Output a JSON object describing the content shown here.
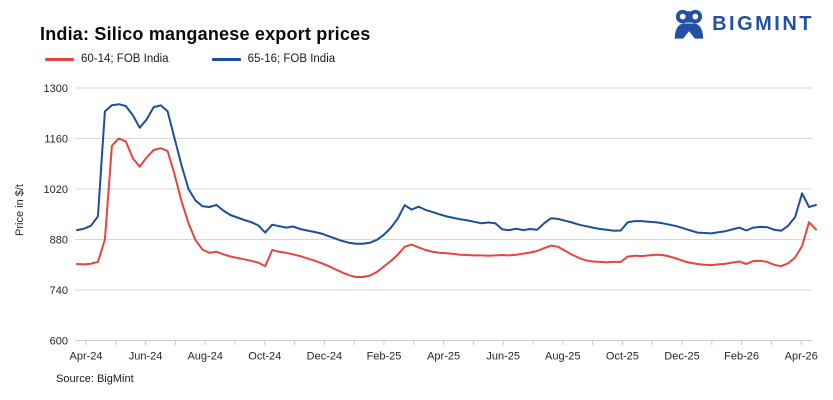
{
  "header": {
    "title": "India: Silico manganese export prices",
    "brand": "BIGMINT"
  },
  "legend": [
    {
      "label": "60-14; FOB India",
      "color": "#e8453f"
    },
    {
      "label": "65-16; FOB India",
      "color": "#1b4f9d"
    }
  ],
  "source": "Source: BigMint",
  "colors": {
    "brand_blue": "#2451a5",
    "grid": "#d8d8d8",
    "axis": "#c9c9c9",
    "tick_text": "#262626"
  },
  "chart_data": {
    "type": "line",
    "title": "India: Silico manganese export prices",
    "xlabel": "",
    "ylabel": "Price in $/t",
    "ylim": [
      600,
      1300
    ],
    "y_ticks": [
      1300,
      1160,
      1020,
      880,
      740,
      600
    ],
    "x_tick_labels": [
      "Apr-24",
      "Jun-24",
      "Aug-24",
      "Oct-24",
      "Dec-24",
      "Feb-25",
      "Apr-25",
      "Jun-25",
      "Aug-25",
      "Oct-25",
      "Dec-25",
      "Feb-26",
      "Apr-26"
    ],
    "x_range": "Apr-2024 to Apr-2026, approximately weekly observations",
    "months_total": 25,
    "grid": "horizontal",
    "legend_position": "top-left",
    "series": [
      {
        "name": "60-14; FOB India",
        "color": "#e8453f",
        "values": [
          812,
          811,
          813,
          818,
          880,
          1140,
          1160,
          1152,
          1105,
          1082,
          1108,
          1128,
          1133,
          1125,
          1060,
          985,
          925,
          878,
          852,
          843,
          846,
          839,
          833,
          829,
          825,
          821,
          816,
          806,
          851,
          846,
          843,
          839,
          834,
          828,
          822,
          815,
          807,
          798,
          789,
          781,
          776,
          776,
          780,
          790,
          805,
          820,
          838,
          860,
          866,
          858,
          851,
          846,
          843,
          842,
          840,
          838,
          837,
          836,
          836,
          835,
          836,
          837,
          836,
          838,
          841,
          844,
          848,
          856,
          863,
          860,
          849,
          838,
          829,
          822,
          819,
          818,
          817,
          818,
          818,
          833,
          835,
          834,
          836,
          838,
          837,
          833,
          827,
          820,
          815,
          812,
          810,
          809,
          811,
          813,
          816,
          819,
          812,
          820,
          821,
          818,
          810,
          806,
          814,
          830,
          862,
          928,
          908
        ]
      },
      {
        "name": "65-16; FOB India",
        "color": "#1b4f9d",
        "values": [
          906,
          910,
          918,
          944,
          1235,
          1252,
          1255,
          1250,
          1225,
          1190,
          1213,
          1247,
          1252,
          1235,
          1160,
          1085,
          1020,
          988,
          972,
          970,
          976,
          960,
          948,
          941,
          934,
          928,
          919,
          899,
          921,
          917,
          913,
          916,
          909,
          905,
          901,
          897,
          890,
          883,
          876,
          871,
          868,
          868,
          871,
          879,
          893,
          912,
          938,
          975,
          963,
          971,
          962,
          956,
          950,
          944,
          940,
          936,
          933,
          929,
          925,
          927,
          925,
          908,
          906,
          910,
          906,
          909,
          907,
          925,
          939,
          937,
          932,
          927,
          921,
          917,
          913,
          909,
          907,
          904,
          905,
          928,
          931,
          931,
          929,
          928,
          925,
          921,
          917,
          911,
          905,
          899,
          898,
          897,
          900,
          903,
          908,
          913,
          905,
          913,
          915,
          914,
          907,
          904,
          918,
          942,
          1008,
          970,
          976
        ]
      }
    ]
  }
}
